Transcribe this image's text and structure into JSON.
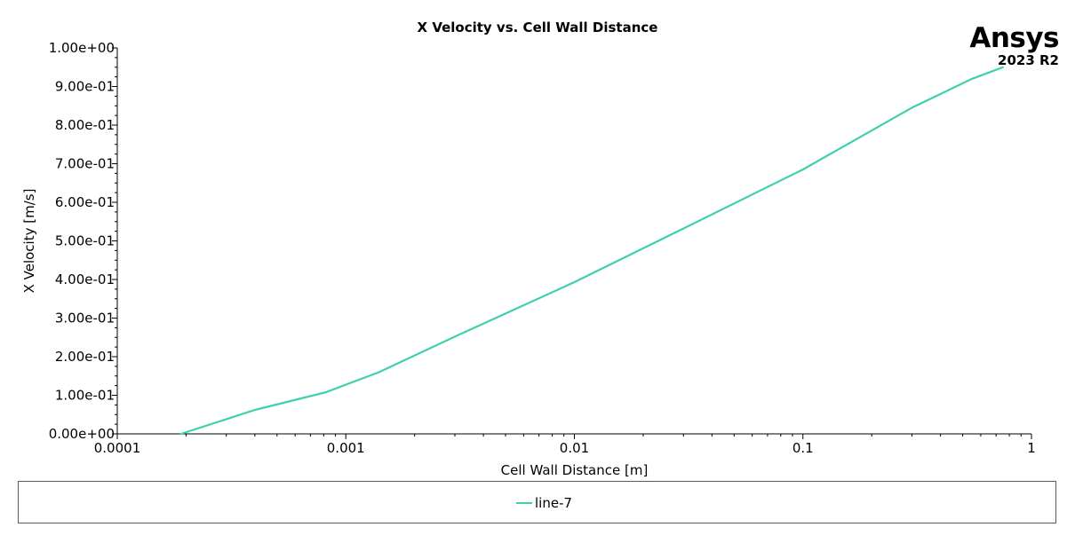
{
  "chart_data": {
    "type": "line",
    "title": "X Velocity vs. Cell Wall Distance",
    "xlabel": "Cell Wall Distance [m]",
    "ylabel": "X Velocity [m/s]",
    "x_scale": "log",
    "xlim": [
      0.0001,
      1
    ],
    "ylim": [
      0,
      1
    ],
    "x_ticks": [
      0.0001,
      0.001,
      0.01,
      0.1,
      1
    ],
    "x_tick_labels": [
      "0.0001",
      "0.001",
      "0.01",
      "0.1",
      "1"
    ],
    "y_ticks": [
      0,
      0.1,
      0.2,
      0.3,
      0.4,
      0.5,
      0.6,
      0.7,
      0.8,
      0.9,
      1.0
    ],
    "y_tick_labels": [
      "0.00e+00",
      "1.00e-01",
      "2.00e-01",
      "3.00e-01",
      "4.00e-01",
      "5.00e-01",
      "6.00e-01",
      "7.00e-01",
      "8.00e-01",
      "9.00e-01",
      "1.00e+00"
    ],
    "grid": false,
    "legend_position": "bottom",
    "series": [
      {
        "name": "line-7",
        "color": "#40d0b0",
        "x": [
          0.00019,
          0.0004,
          0.00082,
          0.0014,
          0.003,
          0.01,
          0.03,
          0.1,
          0.3,
          0.55,
          0.75
        ],
        "y": [
          0.0,
          0.062,
          0.108,
          0.16,
          0.252,
          0.393,
          0.532,
          0.685,
          0.845,
          0.92,
          0.95
        ]
      }
    ]
  },
  "branding": {
    "brand": "Ansys",
    "version": "2023 R2"
  }
}
